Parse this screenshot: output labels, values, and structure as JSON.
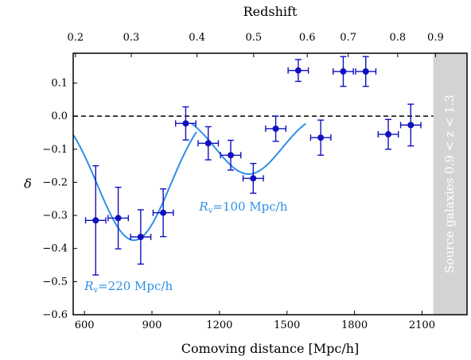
{
  "chart_data": {
    "type": "scatter",
    "title": "",
    "xlabel": "Comoving distance [Mpc/h]",
    "ylabel": "δ",
    "top_xlabel": "Redshift",
    "xlim": [
      550,
      2300
    ],
    "ylim": [
      -0.6,
      0.19
    ],
    "xticks": [
      600,
      900,
      1200,
      1500,
      1800,
      2100
    ],
    "xtick_labels": [
      "600",
      "900",
      "1200",
      "1500",
      "1800",
      "2100"
    ],
    "yticks": [
      -0.6,
      -0.5,
      -0.4,
      -0.3,
      -0.2,
      -0.1,
      0.0,
      0.1
    ],
    "ytick_labels": [
      "−0.6",
      "−0.5",
      "−0.4",
      "−0.3",
      "−0.2",
      "−0.1",
      "0.0",
      "0.1"
    ],
    "top_ticks": [
      {
        "label": "0.2",
        "x": 560
      },
      {
        "label": "0.3",
        "x": 808
      },
      {
        "label": "0.4",
        "x": 1100
      },
      {
        "label": "0.5",
        "x": 1352
      },
      {
        "label": "0.6",
        "x": 1590
      },
      {
        "label": "0.7",
        "x": 1772
      },
      {
        "label": "0.8",
        "x": 1992
      },
      {
        "label": "0.9",
        "x": 2160
      }
    ],
    "grid": false,
    "reference_line_y": 0.0,
    "shaded_region": {
      "x_start": 2150,
      "x_end": 2300,
      "label": "Source galaxies 0.9 < z < 1.3",
      "color": "#d3d3d3"
    },
    "series": [
      {
        "type": "errorbar",
        "color": "#1010c0",
        "x": [
          650,
          750,
          850,
          950,
          1050,
          1150,
          1250,
          1350,
          1450,
          1550,
          1650,
          1750,
          1850,
          1950,
          2050
        ],
        "y": [
          -0.315,
          -0.308,
          -0.365,
          -0.292,
          -0.022,
          -0.082,
          -0.118,
          -0.188,
          -0.038,
          0.138,
          -0.065,
          0.135,
          0.135,
          -0.055,
          -0.027
        ],
        "yerr": [
          0.165,
          0.093,
          0.082,
          0.072,
          0.05,
          0.05,
          0.045,
          0.045,
          0.038,
          0.033,
          0.053,
          0.045,
          0.045,
          0.045,
          0.063
        ],
        "xerr": 45
      }
    ],
    "models": [
      {
        "label": "220 Mpc/h",
        "color": "#2e8fe8",
        "center": 820,
        "radius": 280,
        "amplitude": -0.375,
        "x_start": 550,
        "x_end": 1100
      },
      {
        "label": "100 Mpc/h",
        "color": "#2e8fe8",
        "center": 1330,
        "radius": 255,
        "amplitude": -0.175,
        "x_start": 1075,
        "x_end": 1585
      }
    ],
    "annotations": [
      {
        "var": "R",
        "sub": "v",
        "text": "=100 Mpc/h",
        "color": "#2e8fe8",
        "x": 1110,
        "y": -0.286
      },
      {
        "var": "R",
        "sub": "v",
        "text": "=220 Mpc/h",
        "color": "#2e8fe8",
        "x": 600,
        "y": -0.525
      }
    ]
  }
}
